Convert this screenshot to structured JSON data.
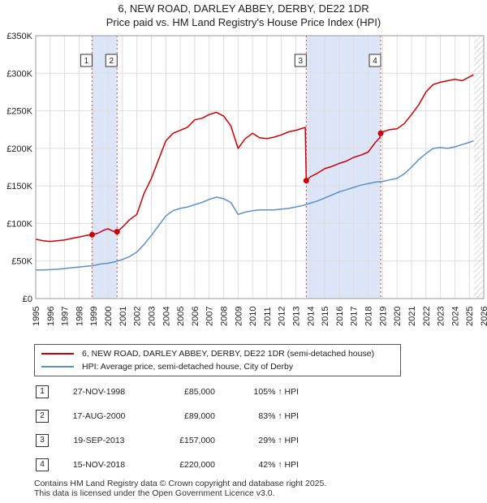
{
  "title_line1": "6, NEW ROAD, DARLEY ABBEY, DERBY, DE22 1DR",
  "title_line2": "Price paid vs. HM Land Registry's House Price Index (HPI)",
  "legend": {
    "property": "6, NEW ROAD, DARLEY ABBEY, DERBY, DE22 1DR (semi-detached house)",
    "hpi": "HPI: Average price, semi-detached house, City of Derby"
  },
  "colors": {
    "property": "#cc0000",
    "hpi": "#5b8fd0",
    "band": "#dde6f8",
    "grid": "#dddddd",
    "marker": "#cc0000"
  },
  "sales": [
    {
      "num": "1",
      "date": "27-NOV-1998",
      "price": "£85,000",
      "hpi": "105% ↑ HPI"
    },
    {
      "num": "2",
      "date": "17-AUG-2000",
      "price": "£89,000",
      "hpi": "83% ↑ HPI"
    },
    {
      "num": "3",
      "date": "19-SEP-2013",
      "price": "£157,000",
      "hpi": "29% ↑ HPI"
    },
    {
      "num": "4",
      "date": "15-NOV-2018",
      "price": "£220,000",
      "hpi": "42% ↑ HPI"
    }
  ],
  "footer_line1": "Contains HM Land Registry data © Crown copyright and database right 2025.",
  "footer_line2": "This data is licensed under the Open Government Licence v3.0.",
  "chart_data": {
    "type": "line",
    "title": "Price paid vs. HM Land Registry's House Price Index (HPI)",
    "xlim": [
      1995,
      2026
    ],
    "ylim": [
      0,
      350000
    ],
    "x_ticks": [
      1995,
      1996,
      1997,
      1998,
      1999,
      2000,
      2001,
      2002,
      2003,
      2004,
      2005,
      2006,
      2007,
      2008,
      2009,
      2010,
      2011,
      2012,
      2013,
      2014,
      2015,
      2016,
      2017,
      2018,
      2019,
      2020,
      2021,
      2022,
      2023,
      2024,
      2025,
      2026
    ],
    "y_ticks": [
      0,
      50000,
      100000,
      150000,
      200000,
      250000,
      300000,
      350000
    ],
    "y_tick_labels": [
      "£0",
      "£50K",
      "£100K",
      "£150K",
      "£200K",
      "£250K",
      "£300K",
      "£350K"
    ],
    "grid": true,
    "shaded_bands": [
      [
        1998.9,
        2000.63
      ],
      [
        2013.72,
        2018.87
      ]
    ],
    "hatched_after": 2025.3,
    "sale_markers": [
      {
        "label": "1",
        "x": 1998.9,
        "y": 85000
      },
      {
        "label": "2",
        "x": 2000.63,
        "y": 89000
      },
      {
        "label": "3",
        "x": 2013.72,
        "y": 157000
      },
      {
        "label": "4",
        "x": 2018.87,
        "y": 220000
      }
    ],
    "series": [
      {
        "name": "6, NEW ROAD, DARLEY ABBEY, DERBY, DE22 1DR (semi-detached house)",
        "x": [
          1995.0,
          1995.5,
          1996.0,
          1996.5,
          1997.0,
          1997.5,
          1998.0,
          1998.5,
          1998.9,
          1999.3,
          1999.7,
          2000.0,
          2000.3,
          2000.63,
          2001.0,
          2001.5,
          2002.0,
          2002.5,
          2003.0,
          2003.5,
          2004.0,
          2004.5,
          2005.0,
          2005.5,
          2006.0,
          2006.5,
          2007.0,
          2007.5,
          2008.0,
          2008.5,
          2009.0,
          2009.5,
          2010.0,
          2010.5,
          2011.0,
          2011.5,
          2012.0,
          2012.5,
          2013.0,
          2013.5,
          2013.65,
          2013.72,
          2014.0,
          2014.5,
          2015.0,
          2015.5,
          2016.0,
          2016.5,
          2017.0,
          2017.5,
          2018.0,
          2018.5,
          2018.8,
          2018.87,
          2019.0,
          2019.5,
          2020.0,
          2020.5,
          2021.0,
          2021.5,
          2022.0,
          2022.5,
          2023.0,
          2023.5,
          2024.0,
          2024.5,
          2025.0,
          2025.3
        ],
        "values": [
          79000,
          77000,
          76000,
          77000,
          78000,
          80000,
          82000,
          84000,
          85000,
          87000,
          91000,
          93000,
          90000,
          89000,
          95000,
          105000,
          112000,
          140000,
          160000,
          185000,
          210000,
          220000,
          224000,
          228000,
          238000,
          240000,
          245000,
          248000,
          243000,
          230000,
          200000,
          213000,
          220000,
          214000,
          213000,
          215000,
          218000,
          222000,
          224000,
          227000,
          228000,
          157000,
          162000,
          167000,
          173000,
          176000,
          180000,
          183000,
          188000,
          191000,
          195000,
          208000,
          214000,
          220000,
          222000,
          225000,
          226000,
          233000,
          245000,
          258000,
          275000,
          285000,
          288000,
          290000,
          292000,
          290000,
          295000,
          298000
        ]
      },
      {
        "name": "HPI: Average price, semi-detached house, City of Derby",
        "x": [
          1995.0,
          1995.5,
          1996.0,
          1996.5,
          1997.0,
          1997.5,
          1998.0,
          1998.5,
          1999.0,
          1999.5,
          2000.0,
          2000.5,
          2001.0,
          2001.5,
          2002.0,
          2002.5,
          2003.0,
          2003.5,
          2004.0,
          2004.5,
          2005.0,
          2005.5,
          2006.0,
          2006.5,
          2007.0,
          2007.5,
          2008.0,
          2008.5,
          2009.0,
          2009.5,
          2010.0,
          2010.5,
          2011.0,
          2011.5,
          2012.0,
          2012.5,
          2013.0,
          2013.5,
          2014.0,
          2014.5,
          2015.0,
          2015.5,
          2016.0,
          2016.5,
          2017.0,
          2017.5,
          2018.0,
          2018.5,
          2019.0,
          2019.5,
          2020.0,
          2020.5,
          2021.0,
          2021.5,
          2022.0,
          2022.5,
          2023.0,
          2023.5,
          2024.0,
          2024.5,
          2025.0,
          2025.3
        ],
        "values": [
          38000,
          38000,
          38500,
          39000,
          40000,
          41000,
          42000,
          43000,
          44000,
          46000,
          47000,
          49000,
          52000,
          56000,
          62000,
          72000,
          84000,
          97000,
          110000,
          117000,
          120000,
          122000,
          125000,
          128000,
          132000,
          135000,
          133000,
          128000,
          112000,
          115000,
          117000,
          118000,
          118000,
          118000,
          119000,
          120000,
          122000,
          124000,
          127000,
          130000,
          134000,
          138000,
          142000,
          145000,
          148000,
          151000,
          153000,
          155000,
          156000,
          158000,
          160000,
          166000,
          175000,
          185000,
          193000,
          200000,
          201000,
          200000,
          202000,
          205000,
          208000,
          210000
        ]
      }
    ]
  }
}
